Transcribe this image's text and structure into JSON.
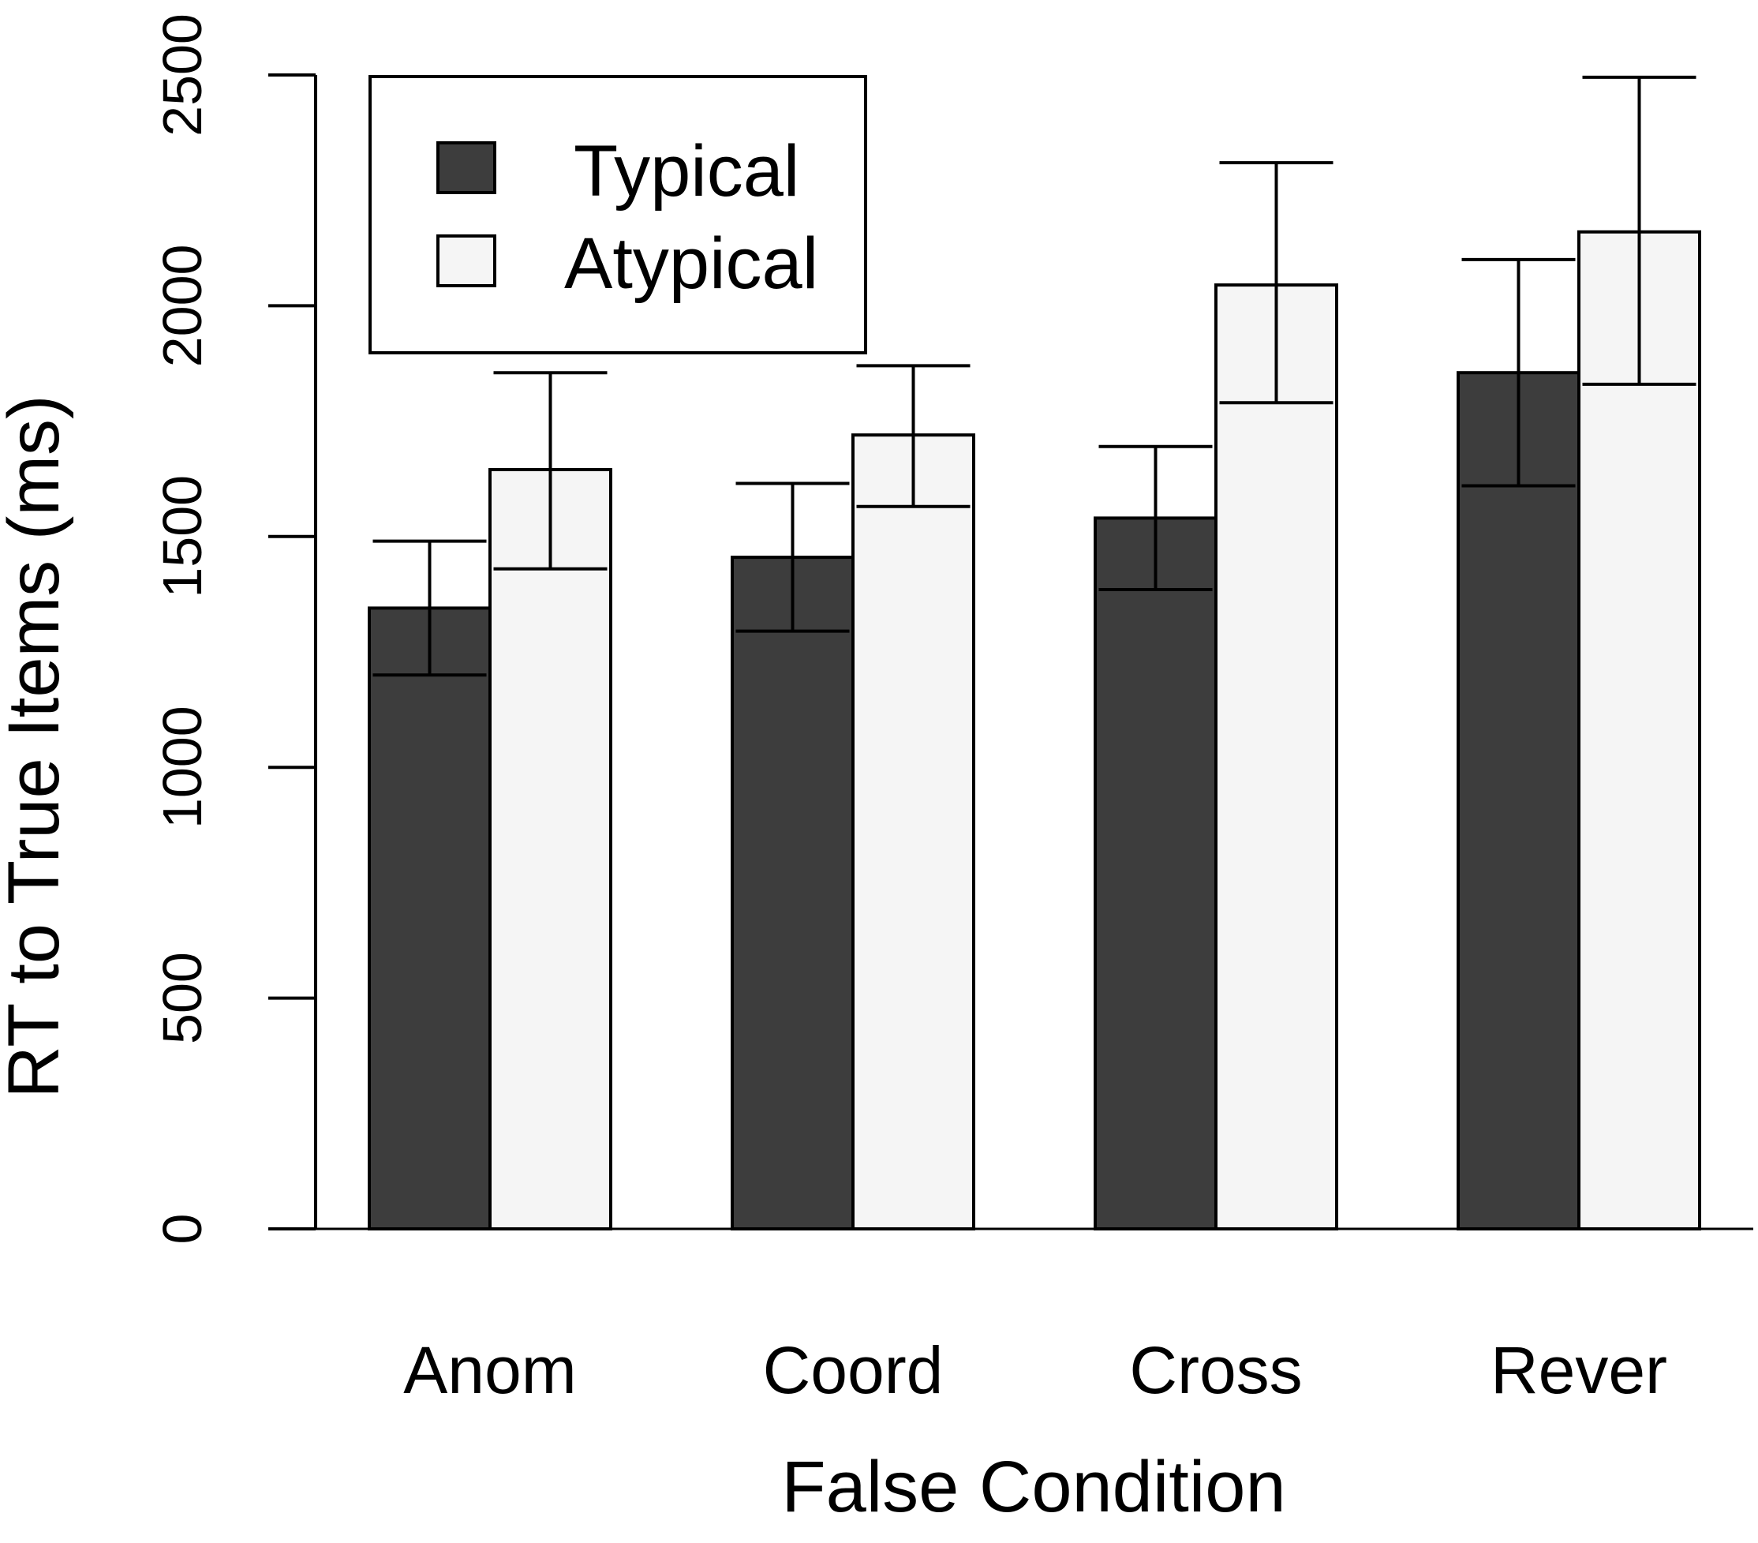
{
  "chart_data": {
    "type": "bar",
    "title": "",
    "xlabel": "False Condition",
    "ylabel": "RT to True Items (ms)",
    "ylim": [
      0,
      2500
    ],
    "yticks": [
      0,
      500,
      1000,
      1500,
      2000,
      2500
    ],
    "categories": [
      "Anom",
      "Coord",
      "Cross",
      "Rever"
    ],
    "series": [
      {
        "name": "Typical",
        "color": "#3d3d3d",
        "values": [
          1345,
          1455,
          1540,
          1855
        ],
        "error_low": [
          1200,
          1295,
          1385,
          1610
        ],
        "error_high": [
          1490,
          1615,
          1695,
          2100
        ]
      },
      {
        "name": "Atypical",
        "color": "#f5f5f5",
        "values": [
          1645,
          1720,
          2045,
          2160
        ],
        "error_low": [
          1430,
          1565,
          1790,
          1830
        ],
        "error_high": [
          1855,
          1870,
          2310,
          2495
        ]
      }
    ],
    "legend_position": "top-left",
    "grid": false
  }
}
